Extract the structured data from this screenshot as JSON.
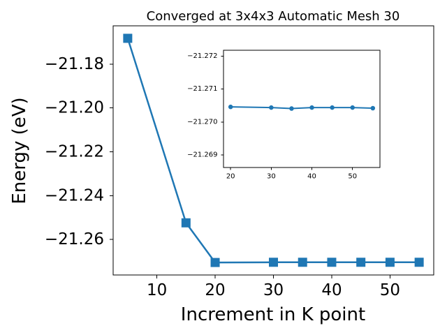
{
  "chart_data": [
    {
      "type": "line",
      "title": "Converged at 3x4x3 Automatic Mesh 30",
      "xlabel": "Increment in K point",
      "ylabel": "Energy (eV)",
      "x": [
        5,
        15,
        20,
        30,
        35,
        40,
        45,
        50,
        55
      ],
      "values": [
        -21.1682,
        -21.2524,
        -21.2705,
        -21.2704,
        -21.2704,
        -21.2704,
        -21.2704,
        -21.2704,
        -21.2704
      ],
      "marker": "square",
      "color": "#1f77b4",
      "xlim": [
        2.5,
        57.5
      ],
      "ylim": [
        -21.2762,
        -21.1625
      ],
      "xticks": [
        10,
        20,
        30,
        40,
        50
      ],
      "xtick_labels": [
        "10",
        "20",
        "30",
        "40",
        "50"
      ],
      "yticks": [
        -21.18,
        -21.2,
        -21.22,
        -21.24,
        -21.26
      ],
      "ytick_labels": [
        "−21.18",
        "−21.20",
        "−21.22",
        "−21.24",
        "−21.26"
      ],
      "grid": false
    },
    {
      "type": "line",
      "title": "",
      "xlabel": "",
      "ylabel": "",
      "x": [
        20,
        30,
        35,
        40,
        45,
        50,
        55
      ],
      "values": [
        -21.27046,
        -21.27044,
        -21.27041,
        -21.27044,
        -21.27044,
        -21.27044,
        -21.27042
      ],
      "marker": "circle",
      "color": "#1f77b4",
      "xlim": [
        18.25,
        56.75
      ],
      "ylim": [
        -21.26862,
        -21.27218
      ],
      "y_axis_inverted": true,
      "xticks": [
        20,
        30,
        40,
        50
      ],
      "xtick_labels": [
        "20",
        "30",
        "40",
        "50"
      ],
      "yticks": [
        -21.272,
        -21.271,
        -21.27,
        -21.269
      ],
      "ytick_labels": [
        "−21.272",
        "−21.271",
        "−21.270",
        "−21.269"
      ],
      "grid": false
    }
  ]
}
